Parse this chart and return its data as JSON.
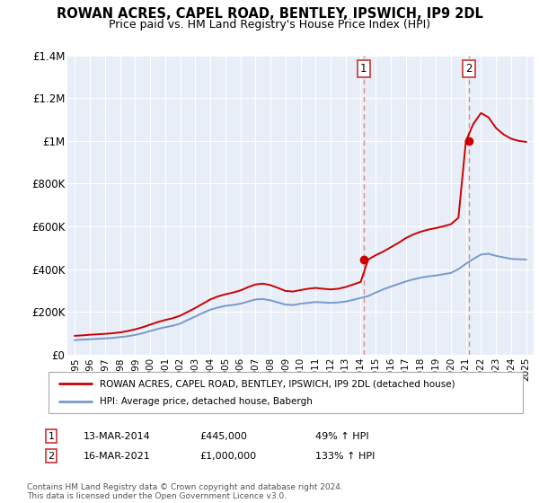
{
  "title": "ROWAN ACRES, CAPEL ROAD, BENTLEY, IPSWICH, IP9 2DL",
  "subtitle": "Price paid vs. HM Land Registry's House Price Index (HPI)",
  "ylim": [
    0,
    1400000
  ],
  "yticks": [
    0,
    200000,
    400000,
    600000,
    800000,
    1000000,
    1200000,
    1400000
  ],
  "ytick_labels": [
    "£0",
    "£200K",
    "£400K",
    "£600K",
    "£800K",
    "£1M",
    "£1.2M",
    "£1.4M"
  ],
  "background_color": "#ffffff",
  "plot_bg_color": "#e8eef8",
  "grid_color": "#ffffff",
  "legend_label_red": "ROWAN ACRES, CAPEL ROAD, BENTLEY, IPSWICH, IP9 2DL (detached house)",
  "legend_label_blue": "HPI: Average price, detached house, Babergh",
  "annotation1_date": "13-MAR-2014",
  "annotation1_price": "£445,000",
  "annotation1_hpi": "49% ↑ HPI",
  "annotation2_date": "16-MAR-2021",
  "annotation2_price": "£1,000,000",
  "annotation2_hpi": "133% ↑ HPI",
  "footer": "Contains HM Land Registry data © Crown copyright and database right 2024.\nThis data is licensed under the Open Government Licence v3.0.",
  "red_color": "#cc0000",
  "blue_color": "#7799cc",
  "vline_color": "#dd8888",
  "sale1_x": 2014.2,
  "sale2_x": 2021.2,
  "sale1_y": 445000,
  "sale2_y": 1000000,
  "hpi_years": [
    1995,
    1995.5,
    1996,
    1996.5,
    1997,
    1997.5,
    1998,
    1998.5,
    1999,
    1999.5,
    2000,
    2000.5,
    2001,
    2001.5,
    2002,
    2002.5,
    2003,
    2003.5,
    2004,
    2004.5,
    2005,
    2005.5,
    2006,
    2006.5,
    2007,
    2007.5,
    2008,
    2008.5,
    2009,
    2009.5,
    2010,
    2010.5,
    2011,
    2011.5,
    2012,
    2012.5,
    2013,
    2013.5,
    2014,
    2014.5,
    2015,
    2015.5,
    2016,
    2016.5,
    2017,
    2017.5,
    2018,
    2018.5,
    2019,
    2019.5,
    2020,
    2020.5,
    2021,
    2021.5,
    2022,
    2022.5,
    2023,
    2023.5,
    2024,
    2024.5,
    2025
  ],
  "hpi_values": [
    68000,
    70000,
    72000,
    74000,
    76000,
    78000,
    82000,
    86000,
    92000,
    100000,
    110000,
    120000,
    128000,
    135000,
    145000,
    162000,
    178000,
    195000,
    210000,
    220000,
    228000,
    232000,
    238000,
    248000,
    258000,
    260000,
    254000,
    244000,
    234000,
    232000,
    238000,
    242000,
    246000,
    244000,
    242000,
    244000,
    248000,
    256000,
    265000,
    274000,
    290000,
    305000,
    318000,
    330000,
    342000,
    352000,
    360000,
    366000,
    370000,
    376000,
    382000,
    400000,
    425000,
    448000,
    468000,
    472000,
    462000,
    455000,
    448000,
    446000,
    445000
  ],
  "red_years": [
    1995,
    1995.5,
    1996,
    1996.5,
    1997,
    1997.5,
    1998,
    1998.5,
    1999,
    1999.5,
    2000,
    2000.5,
    2001,
    2001.5,
    2002,
    2002.5,
    2003,
    2003.5,
    2004,
    2004.5,
    2005,
    2005.5,
    2006,
    2006.5,
    2007,
    2007.5,
    2008,
    2008.5,
    2009,
    2009.5,
    2010,
    2010.5,
    2011,
    2011.5,
    2012,
    2012.5,
    2013,
    2013.5,
    2014,
    2014.5,
    2015,
    2015.5,
    2016,
    2016.5,
    2017,
    2017.5,
    2018,
    2018.5,
    2019,
    2019.5,
    2020,
    2020.5,
    2021,
    2021.5,
    2022,
    2022.5,
    2023,
    2023.5,
    2024,
    2024.5,
    2025
  ],
  "red_values": [
    88000,
    90000,
    93000,
    95000,
    97000,
    100000,
    104000,
    110000,
    118000,
    128000,
    140000,
    152000,
    162000,
    170000,
    182000,
    200000,
    218000,
    238000,
    258000,
    272000,
    282000,
    290000,
    300000,
    315000,
    328000,
    332000,
    325000,
    312000,
    298000,
    295000,
    302000,
    308000,
    312000,
    308000,
    305000,
    308000,
    316000,
    328000,
    340000,
    445000,
    465000,
    482000,
    502000,
    522000,
    545000,
    562000,
    575000,
    585000,
    592000,
    600000,
    610000,
    640000,
    1000000,
    1080000,
    1130000,
    1110000,
    1060000,
    1030000,
    1010000,
    1000000,
    995000
  ],
  "xlim_start": 1994.5,
  "xlim_end": 2025.5
}
